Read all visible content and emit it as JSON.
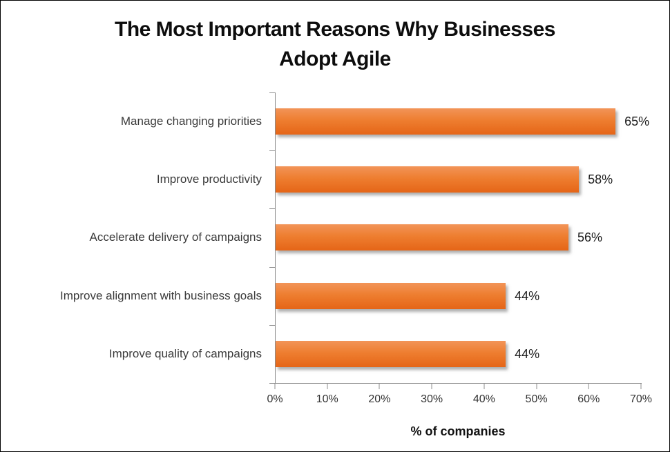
{
  "chart_data": {
    "type": "bar",
    "orientation": "horizontal",
    "title": "The Most Important Reasons Why Businesses Adopt Agile",
    "title_lines": [
      "The Most Important Reasons Why Businesses",
      "Adopt Agile"
    ],
    "categories": [
      "Manage changing priorities",
      "Improve productivity",
      "Accelerate delivery of campaigns",
      "Improve alignment with business goals",
      "Improve quality of campaigns"
    ],
    "values": [
      65,
      58,
      56,
      44,
      44
    ],
    "value_labels": [
      "65%",
      "58%",
      "56%",
      "44%",
      "44%"
    ],
    "xlabel": "% of companies",
    "ylabel": "",
    "x_ticks": [
      "0%",
      "10%",
      "20%",
      "30%",
      "40%",
      "50%",
      "60%",
      "70%"
    ],
    "xlim": [
      0,
      70
    ],
    "grid": false,
    "legend": false,
    "bar_color_top": "#F29458",
    "bar_color_bottom": "#E56517",
    "axis_color": "#8C8C8C"
  }
}
